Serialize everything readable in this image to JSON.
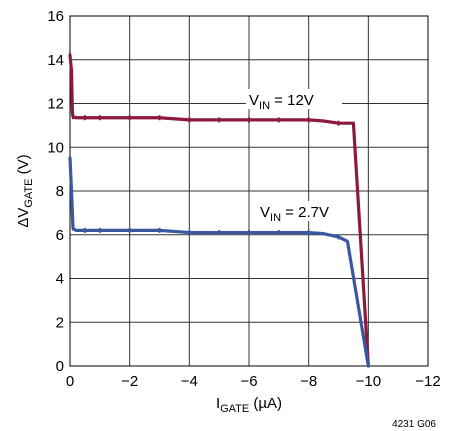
{
  "chart_data": {
    "type": "line",
    "xlim": [
      0,
      -12
    ],
    "ylim": [
      0,
      16
    ],
    "x_ticks": [
      0,
      -2,
      -4,
      -6,
      -8,
      -10,
      -12
    ],
    "x_tick_labels": [
      "0",
      "−2",
      "−4",
      "−6",
      "−8",
      "−10",
      "−12"
    ],
    "y_ticks": [
      0,
      2,
      4,
      6,
      8,
      10,
      12,
      14,
      16
    ],
    "y_tick_labels": [
      "0",
      "2",
      "4",
      "6",
      "8",
      "10",
      "12",
      "14",
      "16"
    ],
    "grid": true,
    "xlabel": {
      "main": "I",
      "sub": "GATE",
      "rest": " (µA)"
    },
    "ylabel": {
      "main": "ΔV",
      "sub": "GATE",
      "rest": " (V)"
    },
    "figure_id": "4231 G06",
    "series": [
      {
        "label_main": "V",
        "label_sub": "IN",
        "label_rest": " = 12V",
        "color": "#8b1a3c",
        "x": [
          0,
          -0.05,
          -0.08,
          -0.1,
          -0.2,
          -0.5,
          -1,
          -2,
          -3,
          -4,
          -5,
          -6,
          -7,
          -8,
          -8.5,
          -9,
          -9.5,
          -10
        ],
        "y": [
          14.2,
          13.5,
          11.6,
          11.4,
          11.35,
          11.35,
          11.35,
          11.35,
          11.35,
          11.25,
          11.25,
          11.25,
          11.25,
          11.25,
          11.2,
          11.1,
          11.1,
          0
        ]
      },
      {
        "label_main": "V",
        "label_sub": "IN",
        "label_rest": " = 2.7V",
        "color": "#3a57a0",
        "x": [
          0,
          -0.05,
          -0.1,
          -0.2,
          -0.5,
          -1,
          -2,
          -3,
          -4,
          -5,
          -6,
          -7,
          -8,
          -8.5,
          -9,
          -9.3,
          -10
        ],
        "y": [
          9.5,
          8.0,
          6.3,
          6.2,
          6.2,
          6.2,
          6.2,
          6.2,
          6.1,
          6.1,
          6.1,
          6.1,
          6.1,
          6.05,
          5.9,
          5.7,
          0
        ]
      }
    ],
    "markers_x": [
      0,
      -0.1,
      -0.5,
      -1,
      -2,
      -3,
      -4,
      -5,
      -6,
      -7,
      -8,
      -9
    ]
  }
}
